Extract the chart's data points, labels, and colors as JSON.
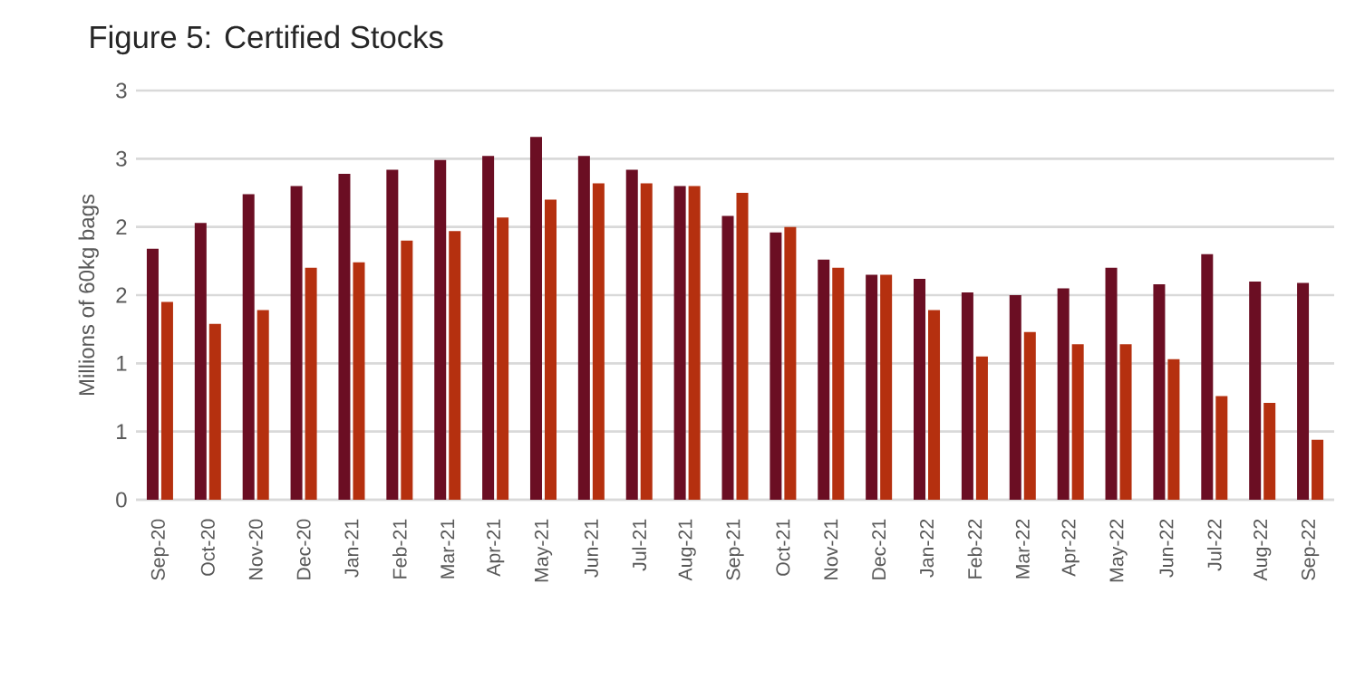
{
  "chart_data": {
    "type": "bar",
    "title": "Figure 5: Certified Stocks",
    "ylabel": "Millions of 60kg bags",
    "categories": [
      "Sep-20",
      "Oct-20",
      "Nov-20",
      "Dec-20",
      "Jan-21",
      "Feb-21",
      "Mar-21",
      "Apr-21",
      "May-21",
      "Jun-21",
      "Jul-21",
      "Aug-21",
      "Sep-21",
      "Oct-21",
      "Nov-21",
      "Dec-21",
      "Jan-22",
      "Feb-22",
      "Mar-22",
      "Apr-22",
      "May-22",
      "Jun-22",
      "Jul-22",
      "Aug-22",
      "Sep-22"
    ],
    "series": [
      {
        "color": "#6b0e23",
        "values": [
          1.84,
          2.03,
          2.24,
          2.3,
          2.39,
          2.42,
          2.49,
          2.52,
          2.66,
          2.52,
          2.42,
          2.3,
          2.08,
          1.96,
          1.76,
          1.65,
          1.62,
          1.52,
          1.5,
          1.55,
          1.7,
          1.58,
          1.8,
          1.6,
          1.59
        ]
      },
      {
        "color": "#b5300f",
        "values": [
          1.45,
          1.29,
          1.39,
          1.7,
          1.74,
          1.9,
          1.97,
          2.07,
          2.2,
          2.32,
          2.32,
          2.3,
          2.25,
          2.0,
          1.7,
          1.65,
          1.39,
          1.05,
          1.23,
          1.14,
          1.14,
          1.03,
          0.76,
          0.71,
          0.44
        ]
      }
    ],
    "ylim": [
      0,
      3
    ],
    "yticks": [
      0,
      {
        "value": 0.5,
        "label": "1"
      },
      1,
      {
        "value": 1.5,
        "label": "2"
      },
      2,
      {
        "value": 2.5,
        "label": "3"
      },
      3
    ],
    "grid": "y"
  }
}
